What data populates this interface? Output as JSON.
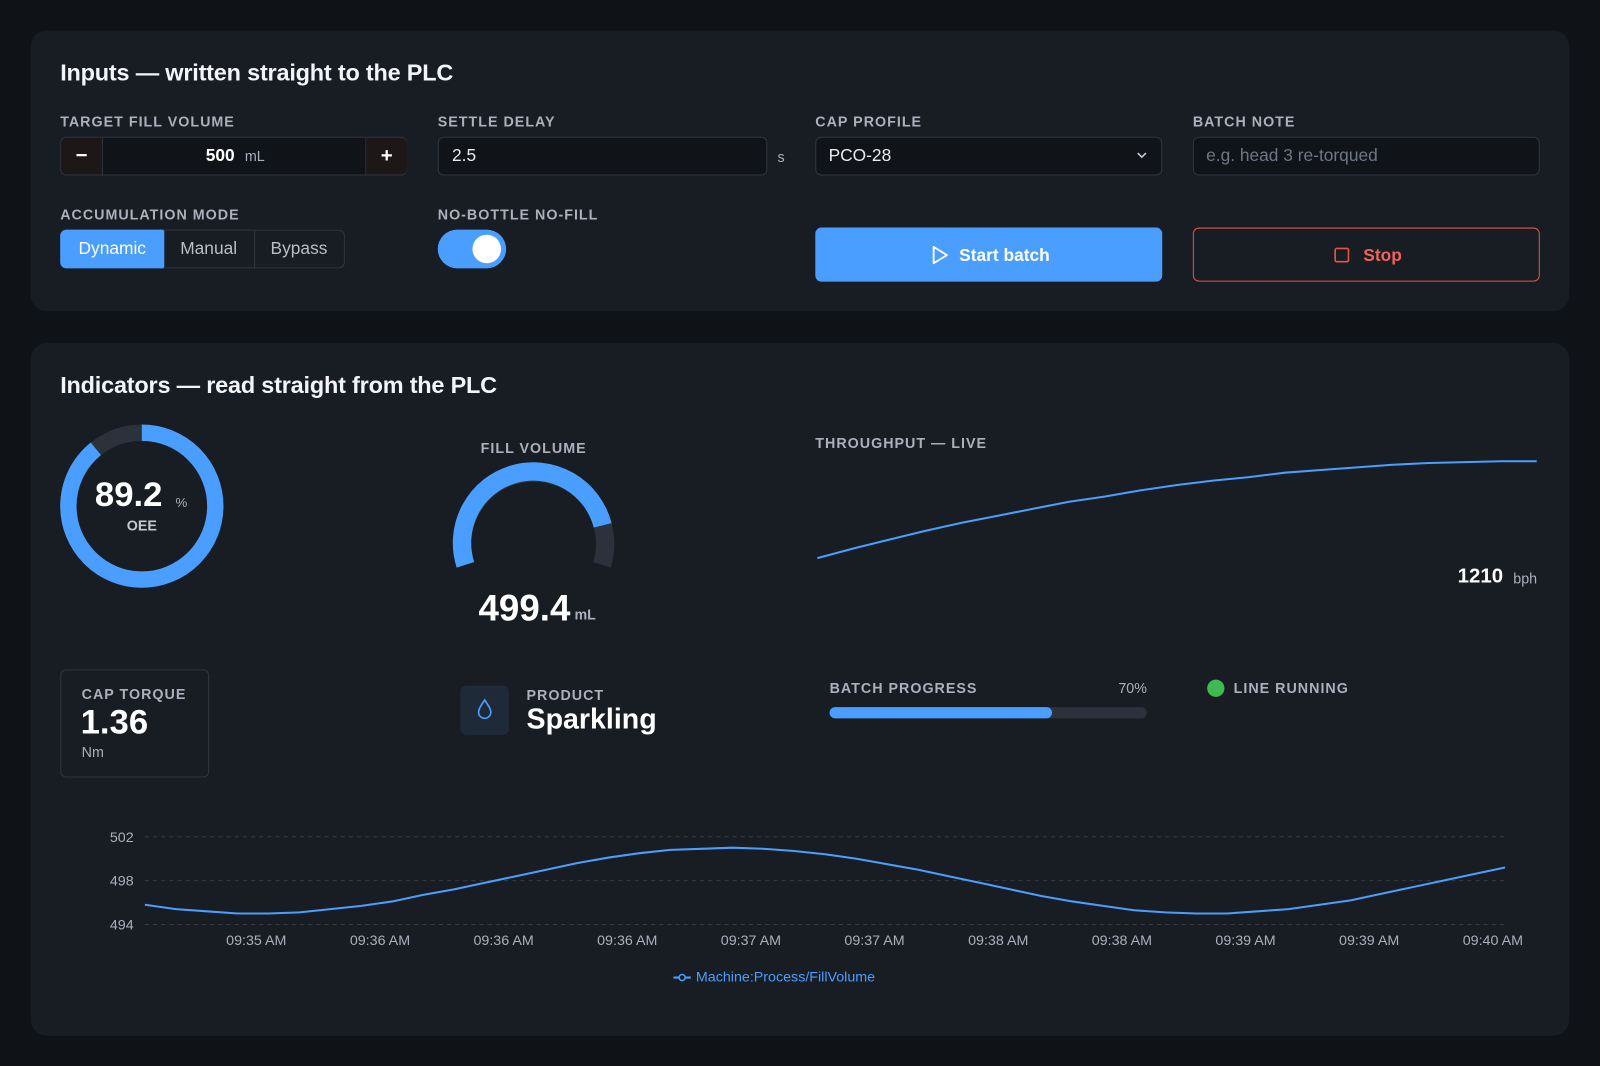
{
  "inputs": {
    "title": "Inputs — written straight to the PLC",
    "target_fill_volume": {
      "label": "TARGET FILL VOLUME",
      "minus": "−",
      "value": 500,
      "unit": "mL",
      "plus": "+"
    },
    "settle_delay": {
      "label": "SETTLE DELAY",
      "value": "2.5",
      "unit": "s"
    },
    "cap_profile": {
      "label": "CAP PROFILE",
      "value": "PCO-28"
    },
    "batch_note": {
      "label": "BATCH NOTE",
      "placeholder": "e.g. head 3 re-torqued"
    },
    "accumulation_mode": {
      "label": "ACCUMULATION MODE",
      "options": [
        "Dynamic",
        "Manual",
        "Bypass"
      ],
      "selected": 0
    },
    "no_bottle_no_fill": {
      "label": "NO-BOTTLE NO-FILL",
      "on": true
    },
    "start": "Start batch",
    "stop": "Stop"
  },
  "indicators": {
    "title": "Indicators — read straight from the PLC",
    "oee": {
      "value": 89.2,
      "unit": "%",
      "label": "OEE"
    },
    "fill_volume": {
      "label": "FILL VOLUME",
      "value": 499.4,
      "unit": "mL"
    },
    "throughput": {
      "label": "THROUGHPUT — LIVE",
      "value": 1210,
      "unit": "bph",
      "values": [
        1100,
        1111,
        1121,
        1131,
        1140,
        1148,
        1156,
        1164,
        1170,
        1177,
        1183,
        1188,
        1192,
        1197,
        1200,
        1203,
        1206,
        1208,
        1209,
        1210,
        1210
      ]
    },
    "cap_torque": {
      "label": "CAP TORQUE",
      "value": 1.36,
      "unit": "Nm"
    },
    "product": {
      "label": "PRODUCT",
      "value": "Sparkling"
    },
    "batch_progress": {
      "label": "BATCH PROGRESS",
      "value": 70,
      "value_label": "70%"
    },
    "line_status": "LINE RUNNING"
  },
  "chart_data": {
    "type": "line",
    "x": [
      null,
      null,
      null,
      null,
      "09:35 AM",
      null,
      null,
      null,
      "09:36 AM",
      null,
      null,
      null,
      "09:36 AM",
      null,
      null,
      null,
      "09:36 AM",
      null,
      null,
      null,
      "09:37 AM",
      null,
      null,
      null,
      "09:37 AM",
      null,
      null,
      null,
      "09:38 AM",
      null,
      null,
      null,
      "09:38 AM",
      null,
      null,
      null,
      "09:39 AM",
      null,
      null,
      null,
      "09:39 AM",
      null,
      null,
      null,
      "09:40 AM"
    ],
    "series": [
      {
        "name": "Machine:Process/FillVolume",
        "color": "#4a9eff",
        "values": [
          495.8,
          495.4,
          495.2,
          495.0,
          495.0,
          495.1,
          495.4,
          495.7,
          496.1,
          496.7,
          497.2,
          497.8,
          498.4,
          499.0,
          499.6,
          500.1,
          500.5,
          500.8,
          500.9,
          501.0,
          500.9,
          500.7,
          500.4,
          500.0,
          499.5,
          499.0,
          498.4,
          497.8,
          497.2,
          496.6,
          496.1,
          495.7,
          495.3,
          495.1,
          495.0,
          495.0,
          495.2,
          495.4,
          495.8,
          496.2,
          496.8,
          497.4,
          498.0,
          498.6,
          499.2
        ]
      }
    ],
    "ylim": [
      494,
      502
    ],
    "yticks": [
      494,
      498,
      502
    ],
    "grid": true
  }
}
